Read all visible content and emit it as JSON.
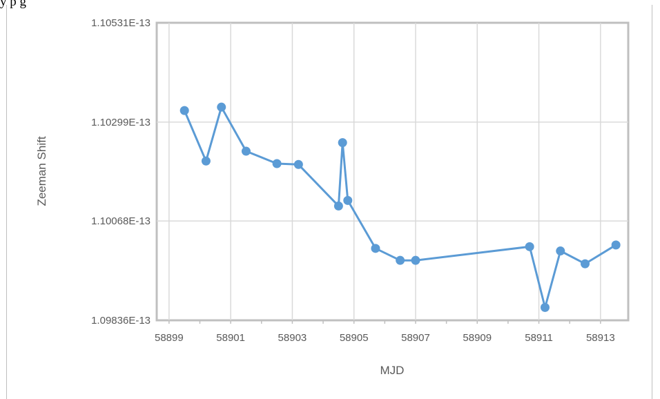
{
  "page": {
    "top_text": "y                                                                                                              p           g"
  },
  "chart_data": {
    "type": "line",
    "title": "",
    "xlabel": "MJD",
    "ylabel": "Zeeman Shift",
    "xlim": [
      58898.6,
      58913.9
    ],
    "ylim": [
      1.09836e-13,
      1.10531e-13
    ],
    "x_ticks": [
      58899,
      58901,
      58903,
      58905,
      58907,
      58909,
      58911,
      58913
    ],
    "x_tick_labels": [
      "58899",
      "58901",
      "58903",
      "58905",
      "58907",
      "58909",
      "58911",
      "58913"
    ],
    "y_ticks": [
      1.09836e-13,
      1.10068e-13,
      1.10299e-13,
      1.10531e-13
    ],
    "y_tick_labels": [
      "1.09836E-13",
      "1.10068E-13",
      "1.10299E-13",
      "1.10531E-13"
    ],
    "grid": true,
    "color": "#5b9bd5",
    "x": [
      58899.5,
      58900.2,
      58900.7,
      58901.5,
      58902.5,
      58903.2,
      58904.5,
      58904.63,
      58904.8,
      58905.7,
      58906.5,
      58907.0,
      58910.7,
      58911.2,
      58911.7,
      58912.5,
      58913.5
    ],
    "y": [
      1.10326e-13,
      1.10208e-13,
      1.10334e-13,
      1.10231e-13,
      1.10202e-13,
      1.102e-13,
      1.10103e-13,
      1.10251e-13,
      1.10116e-13,
      1.10004e-13,
      1.09976e-13,
      1.09976e-13,
      1.10008e-13,
      1.09866e-13,
      1.09998e-13,
      1.09968e-13,
      1.10012e-13
    ]
  }
}
